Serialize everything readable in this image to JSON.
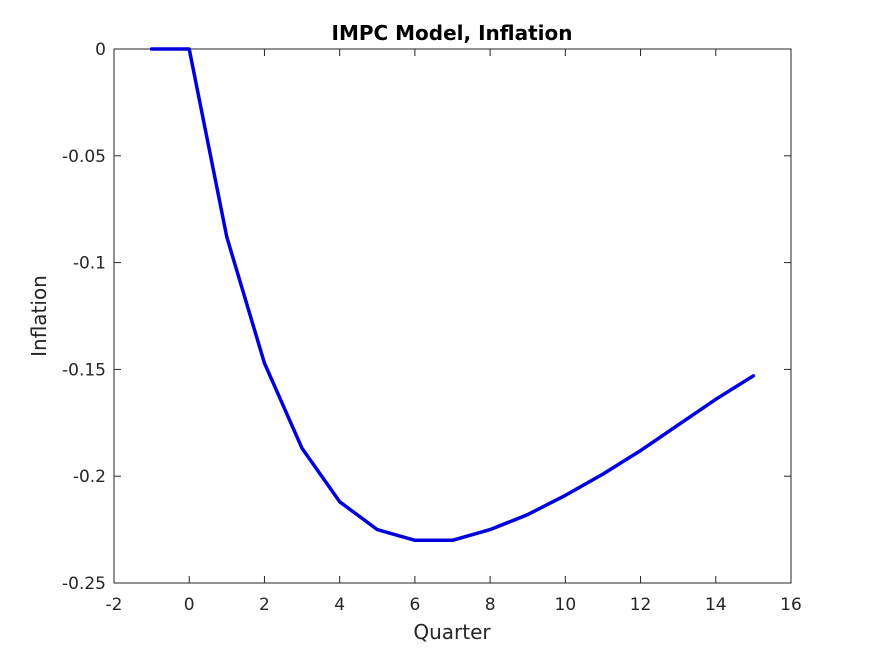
{
  "chart_data": {
    "type": "line",
    "title": "IMPC Model, Inflation",
    "xlabel": "Quarter",
    "ylabel": "Inflation",
    "xlim": [
      -2,
      16
    ],
    "ylim": [
      -0.25,
      0
    ],
    "xticks": [
      -2,
      0,
      2,
      4,
      6,
      8,
      10,
      12,
      14,
      16
    ],
    "xtick_labels": [
      "-2",
      "0",
      "2",
      "4",
      "6",
      "8",
      "10",
      "12",
      "14",
      "16"
    ],
    "yticks": [
      0,
      -0.05,
      -0.1,
      -0.15,
      -0.2,
      -0.25
    ],
    "ytick_labels": [
      "0",
      "-0.05",
      "-0.1",
      "-0.15",
      "-0.2",
      "-0.25"
    ],
    "grid": false,
    "series": [
      {
        "color": "#0000dd",
        "x": [
          -1,
          0,
          1,
          2,
          3,
          4,
          5,
          6,
          7,
          8,
          9,
          10,
          11,
          12,
          13,
          14,
          15
        ],
        "y": [
          0,
          0,
          -0.088,
          -0.147,
          -0.187,
          -0.212,
          -0.225,
          -0.23,
          -0.23,
          -0.225,
          -0.218,
          -0.209,
          -0.199,
          -0.188,
          -0.176,
          -0.164,
          -0.153
        ]
      }
    ]
  }
}
